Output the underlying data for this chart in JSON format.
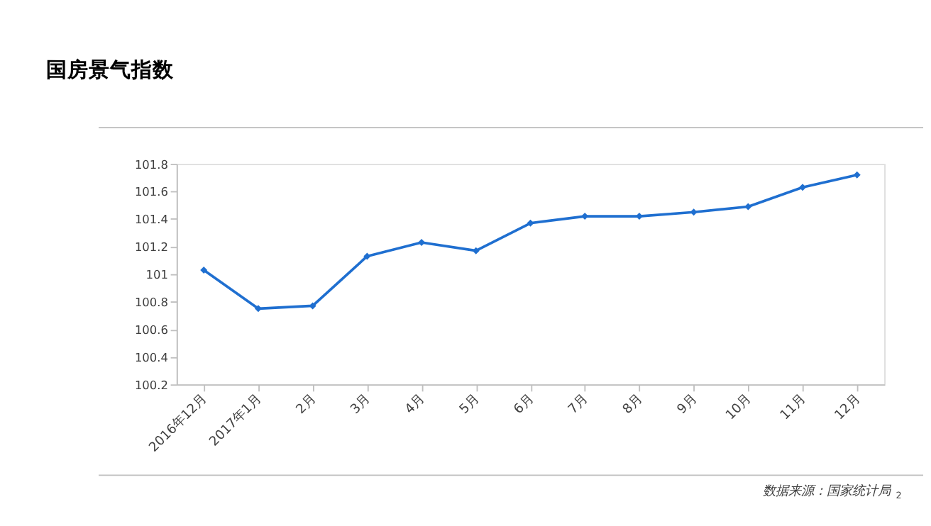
{
  "chart_data": {
    "type": "line",
    "title": "国房景气指数",
    "categories": [
      "2016年12月",
      "2017年1月",
      "2月",
      "3月",
      "4月",
      "5月",
      "6月",
      "7月",
      "8月",
      "9月",
      "10月",
      "11月",
      "12月"
    ],
    "series": [
      {
        "color": "#1f6fd0",
        "values": [
          101.03,
          100.75,
          100.77,
          101.13,
          101.23,
          101.17,
          101.37,
          101.42,
          101.42,
          101.45,
          101.49,
          101.63,
          101.72
        ]
      }
    ],
    "ylim": [
      100.2,
      101.8
    ],
    "yticks": [
      100.2,
      100.4,
      100.6,
      100.8,
      101,
      101.2,
      101.4,
      101.6,
      101.8
    ],
    "marker": "diamond",
    "line_style": "solid",
    "grid": false,
    "legend": false,
    "annotations": [
      "数据来源：国家统计局",
      "2"
    ]
  }
}
